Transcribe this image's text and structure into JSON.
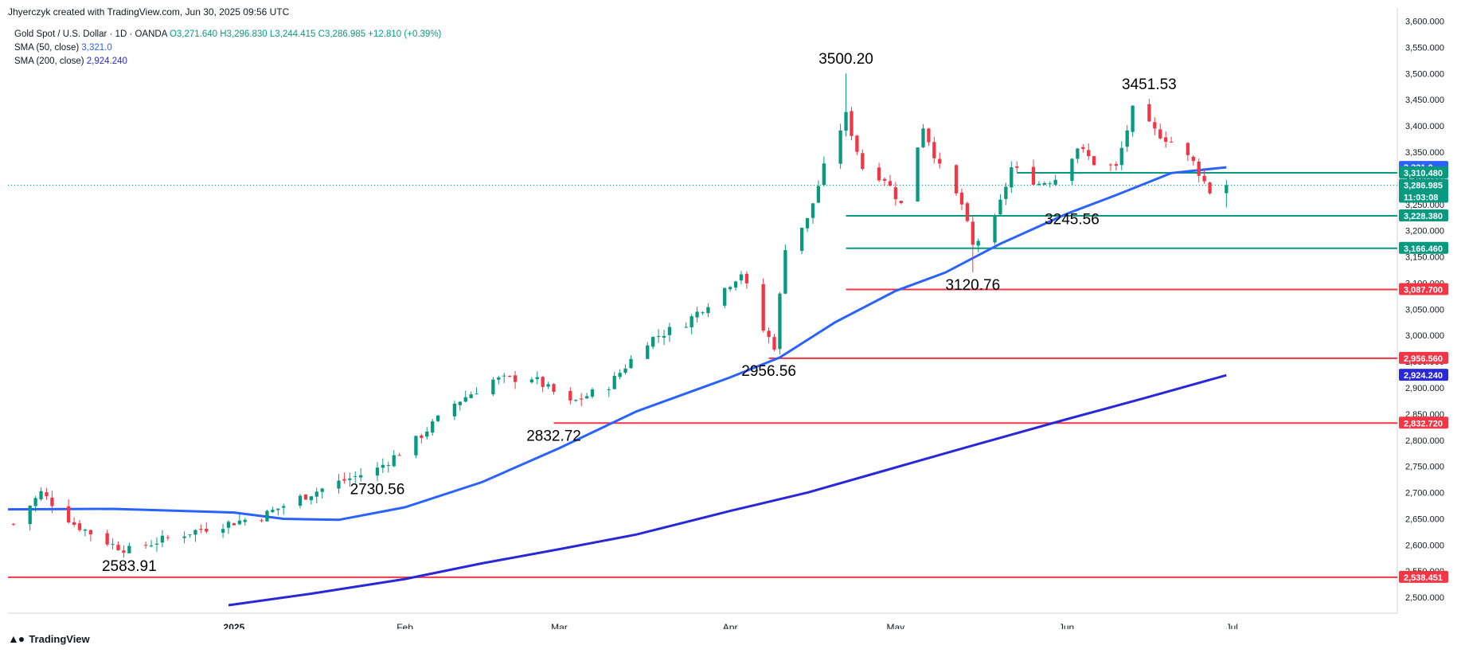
{
  "header": {
    "credit": "Jhyerczyk created with TradingView.com, Jun 30, 2025 09:56 UTC"
  },
  "legend": {
    "symbol": "Gold Spot / U.S. Dollar · 1D · OANDA",
    "ohlc": "O3,271.640  H3,296.830  L3,244.415  C3,286.985  +12.810 (+0.39%)",
    "sma50_label": "SMA (50, close)",
    "sma50_value": "3,321.0",
    "sma200_label": "SMA (200, close)",
    "sma200_value": "2,924.240"
  },
  "footer": {
    "logo_text": "TradingView"
  },
  "colors": {
    "up": "#089981",
    "down": "#f23645",
    "support_green": "#089981",
    "resistance_red": "#f23645",
    "sma50": "#2962ff",
    "sma200": "#2828d8",
    "last_price": "#089981"
  },
  "chart_data": {
    "type": "candlestick",
    "y_range": [
      2485,
      3610
    ],
    "x_range": [
      "2024-11-21",
      "2025-07-31"
    ],
    "price_ticks": [
      "2,500.000",
      "2,550.000",
      "2,600.000",
      "2,650.000",
      "2,700.000",
      "2,750.000",
      "2,800.000",
      "2,850.000",
      "2,900.000",
      "2,950.000",
      "3,000.000",
      "3,050.000",
      "3,100.000",
      "3,150.000",
      "3,200.000",
      "3,250.000",
      "3,300.000",
      "3,350.000",
      "3,400.000",
      "3,450.000",
      "3,500.000",
      "3,550.000",
      "3,600.000"
    ],
    "date_ticks": [
      {
        "label": "2025",
        "date": "2025-01-01",
        "year": true
      },
      {
        "label": "Feb",
        "date": "2025-02-01",
        "year": false
      },
      {
        "label": "Mar",
        "date": "2025-03-01",
        "year": false
      },
      {
        "label": "Apr",
        "date": "2025-04-01",
        "year": false
      },
      {
        "label": "May",
        "date": "2025-05-01",
        "year": false
      },
      {
        "label": "Jun",
        "date": "2025-06-01",
        "year": false
      },
      {
        "label": "Jul",
        "date": "2025-07-01",
        "year": false
      }
    ],
    "trend_path": [
      {
        "date": "2024-11-22",
        "price": 2640
      },
      {
        "date": "2024-11-27",
        "price": 2700
      },
      {
        "date": "2024-12-03",
        "price": 2640
      },
      {
        "date": "2024-12-10",
        "price": 2600
      },
      {
        "date": "2024-12-13",
        "price": 2590
      },
      {
        "date": "2024-12-19",
        "price": 2610
      },
      {
        "date": "2024-12-26",
        "price": 2630
      },
      {
        "date": "2025-01-06",
        "price": 2655
      },
      {
        "date": "2025-01-13",
        "price": 2690
      },
      {
        "date": "2025-01-20",
        "price": 2720
      },
      {
        "date": "2025-01-27",
        "price": 2745
      },
      {
        "date": "2025-02-03",
        "price": 2800
      },
      {
        "date": "2025-02-10",
        "price": 2870
      },
      {
        "date": "2025-02-17",
        "price": 2915
      },
      {
        "date": "2025-02-24",
        "price": 2920
      },
      {
        "date": "2025-03-03",
        "price": 2870
      },
      {
        "date": "2025-03-10",
        "price": 2905
      },
      {
        "date": "2025-03-17",
        "price": 2990
      },
      {
        "date": "2025-03-24",
        "price": 3025
      },
      {
        "date": "2025-03-31",
        "price": 3090
      },
      {
        "date": "2025-04-03",
        "price": 3120
      },
      {
        "date": "2025-04-07",
        "price": 3010
      },
      {
        "date": "2025-04-09",
        "price": 2980
      },
      {
        "date": "2025-04-11",
        "price": 3170
      },
      {
        "date": "2025-04-15",
        "price": 3220
      },
      {
        "date": "2025-04-18",
        "price": 3320
      },
      {
        "date": "2025-04-22",
        "price": 3420
      },
      {
        "date": "2025-04-25",
        "price": 3320
      },
      {
        "date": "2025-04-29",
        "price": 3300
      },
      {
        "date": "2025-05-02",
        "price": 3250
      },
      {
        "date": "2025-05-06",
        "price": 3400
      },
      {
        "date": "2025-05-09",
        "price": 3320
      },
      {
        "date": "2025-05-13",
        "price": 3250
      },
      {
        "date": "2025-05-15",
        "price": 3170
      },
      {
        "date": "2025-05-19",
        "price": 3220
      },
      {
        "date": "2025-05-22",
        "price": 3320
      },
      {
        "date": "2025-05-27",
        "price": 3290
      },
      {
        "date": "2025-05-30",
        "price": 3300
      },
      {
        "date": "2025-06-03",
        "price": 3360
      },
      {
        "date": "2025-06-06",
        "price": 3330
      },
      {
        "date": "2025-06-10",
        "price": 3320
      },
      {
        "date": "2025-06-13",
        "price": 3430
      },
      {
        "date": "2025-06-17",
        "price": 3390
      },
      {
        "date": "2025-06-20",
        "price": 3370
      },
      {
        "date": "2025-06-24",
        "price": 3330
      },
      {
        "date": "2025-06-27",
        "price": 3275
      },
      {
        "date": "2025-06-30",
        "price": 3287
      }
    ],
    "sma50": [
      {
        "date": "2024-11-21",
        "price": 2668
      },
      {
        "date": "2024-12-10",
        "price": 2669
      },
      {
        "date": "2025-01-01",
        "price": 2662
      },
      {
        "date": "2025-01-10",
        "price": 2650
      },
      {
        "date": "2025-01-20",
        "price": 2648
      },
      {
        "date": "2025-02-01",
        "price": 2672
      },
      {
        "date": "2025-02-15",
        "price": 2720
      },
      {
        "date": "2025-03-01",
        "price": 2785
      },
      {
        "date": "2025-03-15",
        "price": 2855
      },
      {
        "date": "2025-04-01",
        "price": 2920
      },
      {
        "date": "2025-04-10",
        "price": 2958
      },
      {
        "date": "2025-04-20",
        "price": 3025
      },
      {
        "date": "2025-05-01",
        "price": 3085
      },
      {
        "date": "2025-05-10",
        "price": 3120
      },
      {
        "date": "2025-05-20",
        "price": 3175
      },
      {
        "date": "2025-06-01",
        "price": 3232
      },
      {
        "date": "2025-06-10",
        "price": 3268
      },
      {
        "date": "2025-06-20",
        "price": 3310
      },
      {
        "date": "2025-06-30",
        "price": 3321
      }
    ],
    "sma200": [
      {
        "date": "2024-12-31",
        "price": 2485
      },
      {
        "date": "2025-01-15",
        "price": 2507
      },
      {
        "date": "2025-02-01",
        "price": 2535
      },
      {
        "date": "2025-02-15",
        "price": 2565
      },
      {
        "date": "2025-03-01",
        "price": 2592
      },
      {
        "date": "2025-03-15",
        "price": 2620
      },
      {
        "date": "2025-04-01",
        "price": 2665
      },
      {
        "date": "2025-04-15",
        "price": 2700
      },
      {
        "date": "2025-05-01",
        "price": 2748
      },
      {
        "date": "2025-05-15",
        "price": 2790
      },
      {
        "date": "2025-06-01",
        "price": 2840
      },
      {
        "date": "2025-06-15",
        "price": 2880
      },
      {
        "date": "2025-06-30",
        "price": 2924
      }
    ],
    "levels": [
      {
        "price": 3310.48,
        "label": "3,310.480",
        "color": "#089981",
        "from": "2025-05-23"
      },
      {
        "price": 3228.38,
        "label": "3,228.380",
        "color": "#089981",
        "from": "2025-04-22"
      },
      {
        "price": 3166.46,
        "label": "3,166.460",
        "color": "#089981",
        "from": "2025-04-22"
      },
      {
        "price": 3087.7,
        "label": "3,087.700",
        "color": "#f23645",
        "from": "2025-04-22"
      },
      {
        "price": 2956.56,
        "label": "2,956.560",
        "color": "#f23645",
        "from": "2025-04-08"
      },
      {
        "price": 2832.72,
        "label": "2,832.720",
        "color": "#f23645",
        "from": "2025-02-28"
      },
      {
        "price": 2538.451,
        "label": "2,538.451",
        "color": "#f23645",
        "from": "2024-11-21"
      }
    ],
    "price_tags": [
      {
        "price": 3321.0,
        "label": "3,321.0",
        "color": "#2962ff"
      },
      {
        "price": 3310.48,
        "label": "3,310.480",
        "color": "#089981"
      },
      {
        "price": 3286.985,
        "label": "3,286.985",
        "color": "#089981",
        "sub": "11:03:08"
      },
      {
        "price": 3228.38,
        "label": "3,228.380",
        "color": "#089981"
      },
      {
        "price": 3166.46,
        "label": "3,166.460",
        "color": "#089981"
      },
      {
        "price": 3087.7,
        "label": "3,087.700",
        "color": "#f23645"
      },
      {
        "price": 2956.56,
        "label": "2,956.560",
        "color": "#f23645"
      },
      {
        "price": 2924.24,
        "label": "2,924.240",
        "color": "#2828d8"
      },
      {
        "price": 2832.72,
        "label": "2,832.720",
        "color": "#f23645"
      },
      {
        "price": 2538.451,
        "label": "2,538.451",
        "color": "#f23645"
      }
    ],
    "annotations": [
      {
        "text": "3500.20",
        "date": "2025-04-22",
        "price": 3500.2,
        "where": "above"
      },
      {
        "text": "3451.53",
        "date": "2025-06-16",
        "price": 3451.53,
        "where": "above"
      },
      {
        "text": "3245.56",
        "date": "2025-06-02",
        "price": 3245.56,
        "where": "below"
      },
      {
        "text": "3120.76",
        "date": "2025-05-15",
        "price": 3120.76,
        "where": "below"
      },
      {
        "text": "2956.56",
        "date": "2025-04-08",
        "price": 2956.56,
        "where": "below"
      },
      {
        "text": "2832.72",
        "date": "2025-02-28",
        "price": 2832.72,
        "where": "below"
      },
      {
        "text": "2730.56",
        "date": "2025-01-27",
        "price": 2730.56,
        "where": "below"
      },
      {
        "text": "2583.91",
        "date": "2024-12-13",
        "price": 2583.91,
        "where": "below"
      }
    ],
    "last_close": 3286.985,
    "grid": false
  }
}
